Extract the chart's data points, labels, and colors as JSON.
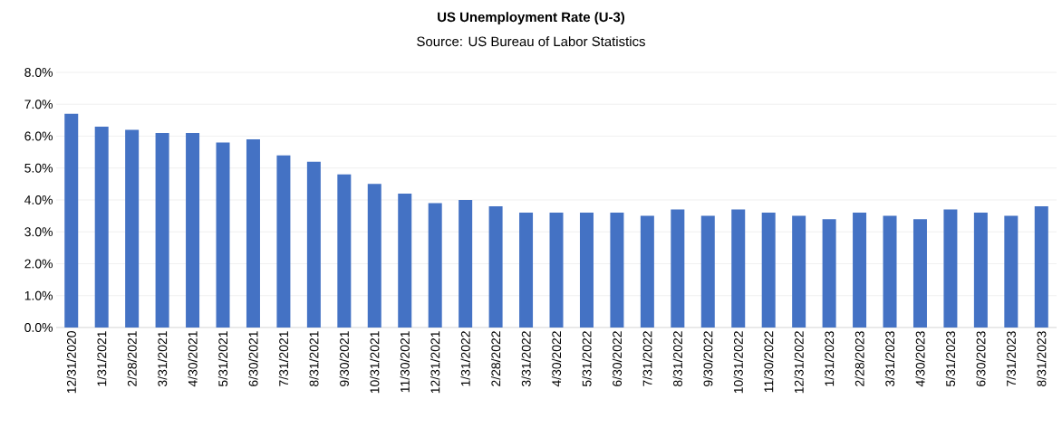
{
  "chart_data": {
    "type": "bar",
    "title": "US Unemployment Rate (U-3)",
    "subtitle": "Source: US Bureau of Labor Statistics",
    "categories": [
      "12/31/2020",
      "1/31/2021",
      "2/28/2021",
      "3/31/2021",
      "4/30/2021",
      "5/31/2021",
      "6/30/2021",
      "7/31/2021",
      "8/31/2021",
      "9/30/2021",
      "10/31/2021",
      "11/30/2021",
      "12/31/2021",
      "1/31/2022",
      "2/28/2022",
      "3/31/2022",
      "4/30/2022",
      "5/31/2022",
      "6/30/2022",
      "7/31/2022",
      "8/31/2022",
      "9/30/2022",
      "10/31/2022",
      "11/30/2022",
      "12/31/2022",
      "1/31/2023",
      "2/28/2023",
      "3/31/2023",
      "4/30/2023",
      "5/31/2023",
      "6/30/2023",
      "7/31/2023",
      "8/31/2023"
    ],
    "values": [
      6.7,
      6.3,
      6.2,
      6.1,
      6.1,
      5.8,
      5.9,
      5.4,
      5.2,
      4.8,
      4.5,
      4.2,
      3.9,
      4.0,
      3.8,
      3.6,
      3.6,
      3.6,
      3.6,
      3.5,
      3.7,
      3.5,
      3.7,
      3.6,
      3.5,
      3.4,
      3.6,
      3.5,
      3.4,
      3.7,
      3.6,
      3.5,
      3.8
    ],
    "color": "#4472c4",
    "ylim": [
      0,
      8
    ],
    "yticks": [
      {
        "value": 0,
        "label": "0.0%"
      },
      {
        "value": 1,
        "label": "1.0%"
      },
      {
        "value": 2,
        "label": "2.0%"
      },
      {
        "value": 3,
        "label": "3.0%"
      },
      {
        "value": 4,
        "label": "4.0%"
      },
      {
        "value": 5,
        "label": "5.0%"
      },
      {
        "value": 6,
        "label": "6.0%"
      },
      {
        "value": 7,
        "label": "7.0%"
      },
      {
        "value": 8,
        "label": "8.0%"
      }
    ],
    "grid": "y"
  }
}
